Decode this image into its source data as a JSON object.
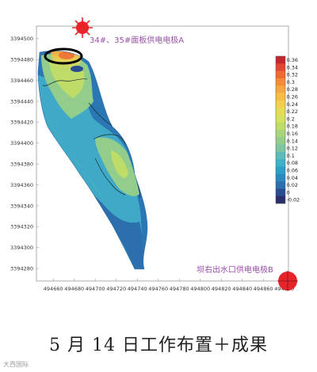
{
  "chart_data": {
    "type": "heatmap",
    "x_ticks": [
      "494660",
      "494680",
      "494700",
      "494720",
      "494740",
      "494760",
      "494780",
      "494800",
      "494820",
      "494840",
      "494860",
      "494880"
    ],
    "y_ticks": [
      "3394500",
      "3394480",
      "3394460",
      "3394440",
      "3394420",
      "3394400",
      "3394380",
      "3394360",
      "3394340",
      "3394320",
      "3394300",
      "3394280"
    ],
    "xlim": [
      494644,
      494884
    ],
    "ylim": [
      3394268,
      3394512
    ],
    "colorbar": {
      "labels": [
        "0.36",
        "0.34",
        "0.32",
        "0.3",
        "0.28",
        "0.26",
        "0.24",
        "0.22",
        "0.2",
        "0.18",
        "0.16",
        "0.14",
        "0.12",
        "0.1",
        "0.08",
        "0.06",
        "0.04",
        "0.02",
        "0",
        "-0.02"
      ],
      "colors": [
        "#c0282e",
        "#e04732",
        "#ef6a32",
        "#f58b3a",
        "#f7a641",
        "#f7bd47",
        "#f2cf4c",
        "#e5dc55",
        "#d3e15e",
        "#bedc68",
        "#a8d57a",
        "#93cd8c",
        "#7fc6a0",
        "#5dbcbb",
        "#3fb0c8",
        "#2f9fc8",
        "#2b89c0",
        "#2b6fae",
        "#2a4d91",
        "#2a2e6b"
      ]
    },
    "annotations": {
      "electrode_a": "34#、35#面板供电电极A",
      "electrode_b": "坝右出水口供电电极B"
    }
  },
  "caption": "5 月 14 日工作布置＋成果",
  "watermark": "大西国际",
  "colors": {
    "electrode_marker": "#e8232a",
    "annotation_text": "#9a4fa8",
    "highlight_ellipse": "#000000",
    "contour_line": "#1a2a2a",
    "field_background": "#2b77b4"
  }
}
